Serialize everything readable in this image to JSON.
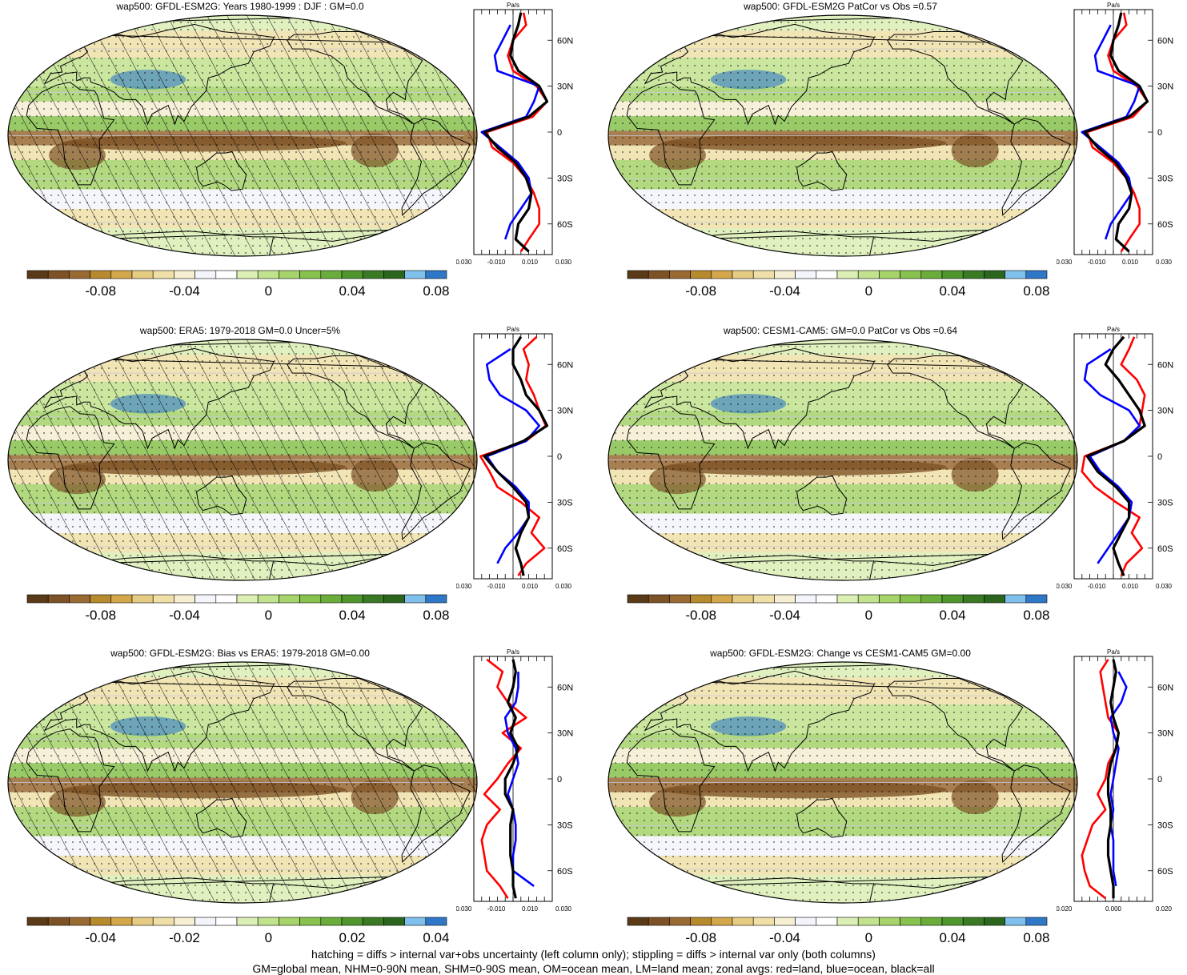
{
  "footer": {
    "line1": "hatching = diffs > internal var+obs uncertainty (left column only); stippling = diffs > internal var only (both columns)",
    "line2": "GM=global mean, NHM=0-90N mean, SHM=0-90S mean, OM=ocean mean, LM=land mean; zonal avgs: red=land, blue=ocean, black=all"
  },
  "colors": {
    "land": "#ff0000",
    "ocean": "#0000ff",
    "all": "#000000",
    "palette": [
      "#5a3a17",
      "#7d5226",
      "#9a6a33",
      "#b88a2e",
      "#d4a84a",
      "#e6cc82",
      "#f0e0a8",
      "#f7efd2",
      "#f4f5fb",
      "#ffffff",
      "#dcefb4",
      "#c2e38e",
      "#a6d46a",
      "#88c24e",
      "#6aad3a",
      "#4f962c",
      "#3a7a25",
      "#2c661e",
      "#7fc1ec",
      "#2f78c8"
    ],
    "background_ocean": "#f3f4fb",
    "land_outline": "#000000"
  },
  "panels": [
    {
      "title": "wap500: GFDL-ESM2G: Years 1980-1999 : DJF : GM=0.0",
      "hatched": true,
      "colorbar_ticks": [
        "-0.08",
        "-0.04",
        "0",
        "0.04",
        "0.08"
      ],
      "chart_data": {
        "type": "line",
        "title": "Pa/s",
        "ylabels": [
          "60N",
          "30N",
          "0",
          "30S",
          "60S"
        ],
        "xlabels": [
          "-0.030",
          "-0.010",
          "0.010",
          "0.030"
        ],
        "xlim": [
          -0.03,
          0.03
        ],
        "ylim": [
          -80,
          80
        ],
        "series": [
          {
            "color_key": "land",
            "y": [
              78,
              70,
              60,
              50,
              40,
              30,
              20,
              10,
              0,
              -10,
              -20,
              -30,
              -40,
              -50,
              -60,
              -70,
              -78
            ],
            "x": [
              0.008,
              0.01,
              0.0,
              -0.004,
              0.0,
              0.018,
              0.026,
              0.015,
              -0.02,
              -0.016,
              0.0,
              0.01,
              0.016,
              0.02,
              0.02,
              0.012,
              0.006
            ]
          },
          {
            "color_key": "ocean",
            "y": [
              70,
              60,
              50,
              40,
              30,
              20,
              10,
              0,
              -10,
              -20,
              -30,
              -40,
              -50,
              -60,
              -70
            ],
            "x": [
              -0.002,
              -0.008,
              -0.014,
              -0.012,
              0.02,
              0.016,
              0.01,
              -0.024,
              -0.01,
              0.004,
              0.012,
              0.014,
              0.006,
              -0.002,
              -0.006
            ]
          },
          {
            "color_key": "all",
            "y": [
              78,
              70,
              60,
              50,
              40,
              30,
              20,
              10,
              0,
              -10,
              -20,
              -30,
              -40,
              -50,
              -60,
              -70,
              -78
            ],
            "x": [
              0.006,
              0.004,
              0.0,
              -0.002,
              0.004,
              0.02,
              0.026,
              0.012,
              -0.022,
              -0.012,
              0.002,
              0.01,
              0.014,
              0.012,
              0.004,
              0.002,
              0.012
            ]
          }
        ]
      }
    },
    {
      "title": "wap500: GFDL-ESM2G PatCor vs Obs =0.57",
      "hatched": false,
      "colorbar_ticks": [
        "-0.08",
        "-0.04",
        "0",
        "0.04",
        "0.08"
      ],
      "chart_data": {
        "type": "line",
        "title": "Pa/s",
        "ylabels": [
          "60N",
          "30N",
          "0",
          "30S",
          "60S"
        ],
        "xlabels": [
          "-0.030",
          "-0.010",
          "0.010",
          "0.030"
        ],
        "xlim": [
          -0.03,
          0.03
        ],
        "ylim": [
          -80,
          80
        ],
        "series": [
          {
            "color_key": "land",
            "y": [
              78,
              70,
              60,
              50,
              40,
              30,
              20,
              10,
              0,
              -10,
              -20,
              -30,
              -40,
              -50,
              -60,
              -70,
              -78
            ],
            "x": [
              0.008,
              0.01,
              0.0,
              -0.004,
              0.0,
              0.018,
              0.026,
              0.015,
              -0.02,
              -0.016,
              0.0,
              0.01,
              0.016,
              0.02,
              0.02,
              0.012,
              0.006
            ]
          },
          {
            "color_key": "ocean",
            "y": [
              70,
              60,
              50,
              40,
              30,
              20,
              10,
              0,
              -10,
              -20,
              -30,
              -40,
              -50,
              -60,
              -70
            ],
            "x": [
              -0.002,
              -0.008,
              -0.014,
              -0.012,
              0.02,
              0.016,
              0.01,
              -0.024,
              -0.01,
              0.004,
              0.012,
              0.014,
              0.006,
              -0.002,
              -0.006
            ]
          },
          {
            "color_key": "all",
            "y": [
              78,
              70,
              60,
              50,
              40,
              30,
              20,
              10,
              0,
              -10,
              -20,
              -30,
              -40,
              -50,
              -60,
              -70,
              -78
            ],
            "x": [
              0.006,
              0.004,
              0.0,
              -0.002,
              0.004,
              0.02,
              0.026,
              0.012,
              -0.022,
              -0.012,
              0.002,
              0.01,
              0.014,
              0.012,
              0.004,
              0.002,
              0.012
            ]
          }
        ]
      }
    },
    {
      "title": "wap500: ERA5: 1979-2018 GM=0.0 Uncer=5%",
      "hatched": true,
      "colorbar_ticks": [
        "-0.08",
        "-0.04",
        "0",
        "0.04",
        "0.08"
      ],
      "chart_data": {
        "type": "line",
        "title": "Pa/s",
        "ylabels": [
          "60N",
          "30N",
          "0",
          "30S",
          "60S"
        ],
        "xlabels": [
          "-0.030",
          "-0.010",
          "0.010",
          "0.030"
        ],
        "xlim": [
          -0.03,
          0.03
        ],
        "ylim": [
          -80,
          80
        ],
        "series": [
          {
            "color_key": "land",
            "y": [
              78,
              70,
              60,
              50,
              40,
              30,
              20,
              10,
              0,
              -10,
              -20,
              -30,
              -40,
              -50,
              -60,
              -70,
              -78
            ],
            "x": [
              0.018,
              0.008,
              0.012,
              0.01,
              0.016,
              0.02,
              0.025,
              0.01,
              -0.025,
              -0.018,
              -0.012,
              0.006,
              0.02,
              0.014,
              0.024,
              0.01,
              0.004
            ]
          },
          {
            "color_key": "ocean",
            "y": [
              70,
              60,
              50,
              40,
              30,
              20,
              10,
              0,
              -10,
              -20,
              -30,
              -40,
              -50,
              -60,
              -70
            ],
            "x": [
              -0.002,
              -0.02,
              -0.018,
              -0.01,
              0.01,
              0.02,
              0.01,
              -0.02,
              -0.012,
              0.002,
              0.012,
              0.012,
              0.004,
              -0.006,
              -0.012
            ]
          },
          {
            "color_key": "all",
            "y": [
              78,
              70,
              60,
              50,
              40,
              30,
              20,
              10,
              0,
              -10,
              -20,
              -30,
              -40,
              -50,
              -60,
              -70,
              -78
            ],
            "x": [
              0.006,
              0.0,
              0.0,
              0.006,
              0.01,
              0.02,
              0.026,
              0.008,
              -0.022,
              -0.012,
              0.0,
              0.01,
              0.012,
              0.006,
              0.002,
              0.006,
              0.008
            ]
          }
        ]
      }
    },
    {
      "title": "wap500: CESM1-CAM5: GM=0.0 PatCor vs Obs =0.64",
      "hatched": false,
      "colorbar_ticks": [
        "-0.08",
        "-0.04",
        "0",
        "0.04",
        "0.08"
      ],
      "chart_data": {
        "type": "line",
        "title": "Pa/s",
        "ylabels": [
          "60N",
          "30N",
          "0",
          "30S",
          "60S"
        ],
        "xlabels": [
          "-0.030",
          "-0.010",
          "0.010",
          "0.030"
        ],
        "xlim": [
          -0.03,
          0.03
        ],
        "ylim": [
          -80,
          80
        ],
        "series": [
          {
            "color_key": "land",
            "y": [
              78,
              70,
              60,
              50,
              40,
              30,
              20,
              10,
              0,
              -10,
              -20,
              -30,
              -40,
              -50,
              -60,
              -70,
              -78
            ],
            "x": [
              0.016,
              0.012,
              0.006,
              0.018,
              0.024,
              0.022,
              0.02,
              0.008,
              -0.022,
              -0.024,
              -0.014,
              0.002,
              0.02,
              0.014,
              0.022,
              0.01,
              0.006
            ]
          },
          {
            "color_key": "ocean",
            "y": [
              70,
              60,
              50,
              40,
              30,
              20,
              10,
              0,
              -10,
              -20,
              -30,
              -40,
              -50,
              -60,
              -70
            ],
            "x": [
              -0.002,
              -0.02,
              -0.022,
              -0.01,
              0.012,
              0.02,
              0.008,
              -0.018,
              -0.01,
              0.004,
              0.014,
              0.012,
              0.004,
              -0.004,
              -0.012
            ]
          },
          {
            "color_key": "all",
            "y": [
              78,
              70,
              60,
              50,
              40,
              30,
              20,
              10,
              0,
              -10,
              -20,
              -30,
              -40,
              -50,
              -60,
              -70,
              -78
            ],
            "x": [
              0.008,
              0.0,
              -0.006,
              0.004,
              0.012,
              0.02,
              0.024,
              0.008,
              -0.02,
              -0.012,
              0.002,
              0.012,
              0.012,
              0.006,
              0.0,
              0.004,
              0.008
            ]
          }
        ]
      }
    },
    {
      "title": "wap500: GFDL-ESM2G: Bias vs ERA5: 1979-2018 GM=0.00",
      "hatched": true,
      "colorbar_ticks": [
        "-0.04",
        "-0.02",
        "0",
        "0.02",
        "0.04"
      ],
      "chart_data": {
        "type": "line",
        "title": "Pa/s",
        "ylabels": [
          "60N",
          "30N",
          "0",
          "30S",
          "60S"
        ],
        "xlabels": [
          "-0.030",
          "-0.010",
          "0.010",
          "0.030"
        ],
        "xlim": [
          -0.03,
          0.03
        ],
        "ylim": [
          -80,
          80
        ],
        "series": [
          {
            "color_key": "land",
            "y": [
              78,
              70,
              60,
              50,
              40,
              30,
              20,
              10,
              0,
              -10,
              -20,
              -30,
              -40,
              -50,
              -60,
              -70,
              -78
            ],
            "x": [
              -0.02,
              -0.008,
              -0.012,
              -0.004,
              0.01,
              -0.008,
              0.006,
              -0.004,
              -0.012,
              -0.022,
              -0.01,
              -0.02,
              -0.024,
              -0.022,
              -0.02,
              -0.01,
              -0.004
            ]
          },
          {
            "color_key": "ocean",
            "y": [
              70,
              60,
              50,
              40,
              30,
              20,
              10,
              0,
              -10,
              -20,
              -30,
              -40,
              -50,
              -60,
              -70
            ],
            "x": [
              0.004,
              0.004,
              0.002,
              -0.006,
              -0.004,
              0.002,
              0.004,
              0.0,
              -0.004,
              0.0,
              0.002,
              0.002,
              0.0,
              0.0,
              0.016
            ]
          },
          {
            "color_key": "all",
            "y": [
              78,
              70,
              60,
              50,
              40,
              30,
              20,
              10,
              0,
              -10,
              -20,
              -30,
              -40,
              -50,
              -60,
              -70,
              -78
            ],
            "x": [
              0.0,
              0.002,
              0.0,
              -0.004,
              0.002,
              -0.002,
              0.004,
              0.0,
              -0.006,
              -0.006,
              0.0,
              -0.002,
              -0.002,
              -0.002,
              0.0,
              0.0,
              0.002
            ]
          }
        ]
      }
    },
    {
      "title": "wap500: GFDL-ESM2G: Change vs CESM1-CAM5 GM=0.00",
      "hatched": false,
      "colorbar_ticks": [
        "-0.08",
        "-0.04",
        "0",
        "0.04",
        "0.08"
      ],
      "chart_data": {
        "type": "line",
        "title": "Pa/s",
        "ylabels": [
          "60N",
          "30N",
          "0",
          "30S",
          "60S"
        ],
        "xlabels": [
          "-0.020",
          "0.000",
          "0.020"
        ],
        "xlim": [
          -0.03,
          0.03
        ],
        "ylim": [
          -80,
          80
        ],
        "series": [
          {
            "color_key": "land",
            "y": [
              78,
              70,
              60,
              50,
              40,
              30,
              20,
              10,
              0,
              -10,
              -20,
              -30,
              -40,
              -50,
              -60,
              -70,
              -78
            ],
            "x": [
              -0.004,
              -0.01,
              -0.008,
              -0.006,
              -0.004,
              0.004,
              0.002,
              -0.004,
              -0.006,
              -0.012,
              -0.006,
              -0.016,
              -0.02,
              -0.024,
              -0.022,
              -0.018,
              -0.006
            ]
          },
          {
            "color_key": "ocean",
            "y": [
              70,
              60,
              50,
              40,
              30,
              20,
              10,
              0,
              -10,
              -20,
              -30,
              -40,
              -50,
              -60,
              -70
            ],
            "x": [
              0.004,
              0.01,
              0.006,
              -0.002,
              0.0,
              0.004,
              0.002,
              0.0,
              -0.002,
              0.0,
              -0.002,
              0.0,
              0.0,
              0.0,
              0.002
            ]
          },
          {
            "color_key": "all",
            "y": [
              78,
              70,
              60,
              50,
              40,
              30,
              20,
              10,
              0,
              -10,
              -20,
              -30,
              -40,
              -50,
              -60,
              -70,
              -78
            ],
            "x": [
              0.0,
              0.002,
              0.0,
              -0.002,
              0.0,
              0.004,
              0.002,
              -0.002,
              -0.004,
              -0.004,
              -0.002,
              -0.002,
              -0.004,
              -0.004,
              -0.002,
              0.0,
              0.0
            ]
          }
        ]
      }
    }
  ]
}
